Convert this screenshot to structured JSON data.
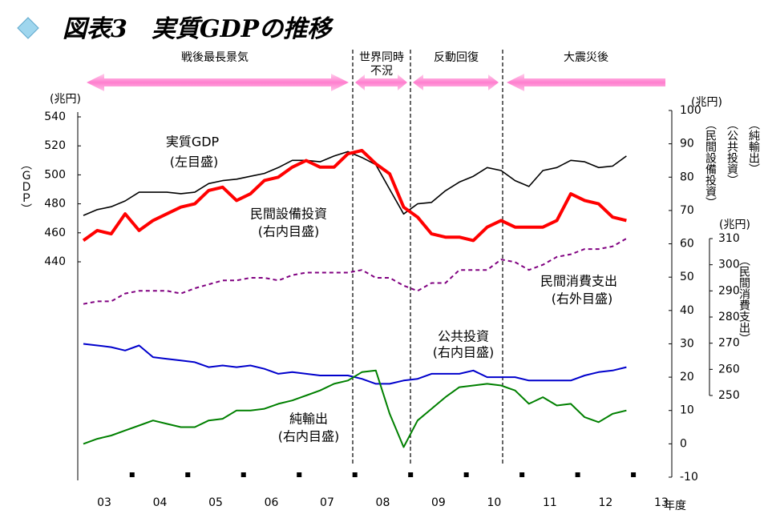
{
  "chart_data": {
    "type": "line",
    "title": "図表3　実質GDPの推移",
    "xlabel": "年度",
    "ylabel": "（ＧＤＰ）",
    "yunit": "(兆円)",
    "y2unit": "(兆円)",
    "y3unit": "(兆円)",
    "y2labels": [
      "（民間設備投資）",
      "（公共投資）",
      "（純輸出）"
    ],
    "y3label": "（民間消費支出）",
    "periods": [
      {
        "lines": [
          "戦後最長景気"
        ]
      },
      {
        "lines": [
          "世界同時",
          "不況"
        ]
      },
      {
        "lines": [
          "反動回復"
        ]
      },
      {
        "lines": [
          "大震災後"
        ]
      }
    ],
    "categories": [
      null,
      "03",
      null,
      null,
      null,
      "04",
      null,
      null,
      null,
      "05",
      null,
      null,
      null,
      "06",
      null,
      null,
      null,
      "07",
      null,
      null,
      null,
      "08",
      null,
      null,
      null,
      "09",
      null,
      null,
      null,
      "10",
      null,
      null,
      null,
      "11",
      null,
      null,
      null,
      "12",
      null,
      null,
      null,
      "13",
      null,
      null
    ],
    "ylim": [
      440,
      540
    ],
    "yticks": [
      440,
      460,
      480,
      500,
      520,
      540
    ],
    "y2lim": [
      -10,
      100
    ],
    "y2ticks": [
      -10,
      0,
      10,
      20,
      30,
      40,
      50,
      60,
      70,
      80,
      90,
      100
    ],
    "y3lim": [
      250,
      310
    ],
    "y3ticks": [
      250,
      260,
      270,
      280,
      290,
      300,
      310
    ],
    "series": [
      {
        "name": "実質GDP",
        "note": "(左目盛)",
        "color": "#000000",
        "width": 1.6,
        "dash": false,
        "axis": "y",
        "values": [
          472,
          476,
          478,
          482,
          488,
          488,
          488,
          487,
          488,
          494,
          496,
          497,
          499,
          501,
          505,
          510,
          510,
          509,
          513,
          516,
          512,
          507,
          490,
          473,
          480,
          481,
          489,
          495,
          499,
          505,
          503,
          496,
          492,
          503,
          505,
          510,
          509,
          505,
          506,
          513,
          null,
          null,
          null,
          null
        ]
      },
      {
        "name": "民間設備投資",
        "note": "(右内目盛)",
        "color": "#ff0000",
        "width": 4,
        "dash": false,
        "axis": "y2",
        "values": [
          61,
          64,
          63,
          69,
          64,
          67,
          69,
          71,
          72,
          76,
          77,
          73,
          75,
          79,
          80,
          83,
          85,
          83,
          83,
          87,
          88,
          84,
          81,
          71,
          68,
          63,
          62,
          62,
          61,
          65,
          67,
          65,
          65,
          65,
          67,
          75,
          73,
          72,
          68,
          67,
          null,
          null,
          null,
          null
        ]
      },
      {
        "name": "民間消費支出",
        "note": "(右外目盛)",
        "color": "#800080",
        "width": 2,
        "dash": true,
        "axis": "y3",
        "values": [
          285,
          286,
          286,
          289,
          290,
          290,
          290,
          289,
          291,
          292.5,
          294,
          294,
          295,
          295,
          294,
          296,
          297,
          297,
          297,
          297,
          298,
          295,
          295,
          292,
          290,
          293,
          293,
          298,
          298,
          298,
          302,
          301,
          298,
          300,
          303,
          304,
          306,
          306,
          307,
          310,
          null,
          null,
          null,
          null
        ]
      },
      {
        "name": "公共投資",
        "note": "(右内目盛)",
        "color": "#0000cc",
        "width": 2,
        "dash": false,
        "axis": "y2",
        "values": [
          30,
          29.5,
          29,
          28,
          29.5,
          26,
          25.5,
          25,
          24.5,
          23,
          23.5,
          23,
          23.5,
          22.5,
          21,
          21.5,
          21,
          20.5,
          20.5,
          20.5,
          19.5,
          18,
          18,
          19,
          19.5,
          21,
          21,
          21,
          22,
          20,
          20,
          20,
          19,
          19,
          19,
          19,
          20.5,
          21.5,
          22,
          23,
          null,
          null,
          null,
          null
        ]
      },
      {
        "name": "純輸出",
        "note": "(右内目盛)",
        "color": "#008000",
        "width": 2,
        "dash": false,
        "axis": "y2",
        "values": [
          0,
          1.5,
          2.5,
          4,
          5.5,
          7,
          6,
          5,
          5,
          7,
          7.5,
          10,
          10,
          10.5,
          12,
          13,
          14.5,
          16,
          18,
          19,
          21.5,
          22,
          9,
          -1,
          7,
          10.5,
          14,
          17,
          17.5,
          18,
          17.5,
          16,
          12,
          14,
          11.5,
          12,
          8,
          6.5,
          9,
          10,
          null,
          null,
          null,
          null
        ]
      }
    ]
  }
}
